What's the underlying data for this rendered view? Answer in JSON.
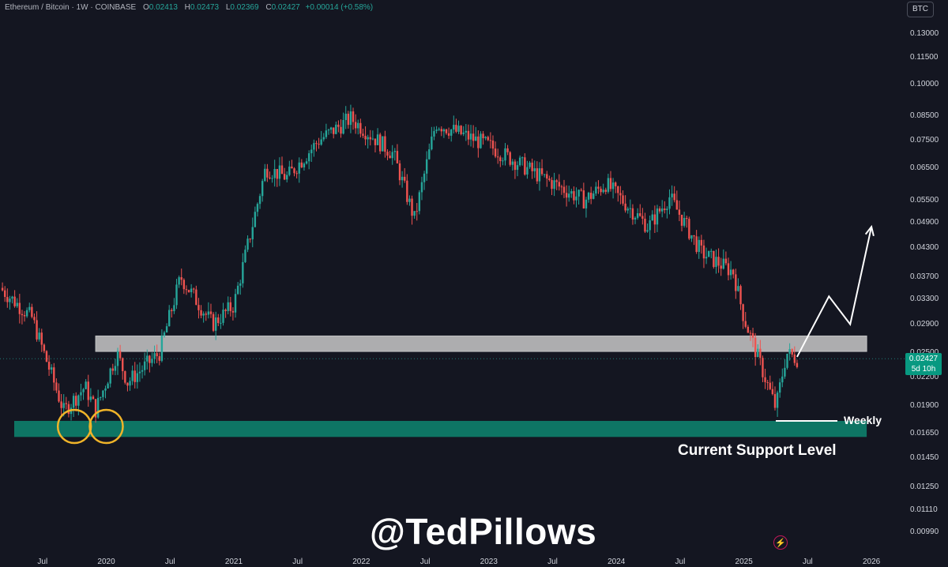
{
  "header": {
    "symbol": "Ethereum / Bitcoin · 1W · COINBASE",
    "open_label": "O",
    "open_value": "0.02413",
    "high_label": "H",
    "high_value": "0.02473",
    "low_label": "L",
    "low_value": "0.02369",
    "close_label": "C",
    "close_value": "0.02427",
    "change": "+0.00014 (+0.58%)"
  },
  "currency_button": "BTC",
  "price_tag": {
    "price": "0.02427",
    "countdown": "5d 10h"
  },
  "annotations": {
    "weekly": "Weekly",
    "support": "Current Support Level",
    "watermark": "@TedPillows"
  },
  "colors": {
    "background": "#141621",
    "up": "#26a69a",
    "down": "#ef5350",
    "support_zone": "#0e7a68",
    "resistance_zone": "#c8c8c8",
    "circle": "#f0b429"
  },
  "chart_data": {
    "type": "candlestick",
    "timeframe": "1W",
    "y_scale": "log",
    "y_ticks": [
      "0.13000",
      "0.11500",
      "0.10000",
      "0.08500",
      "0.07500",
      "0.06500",
      "0.05500",
      "0.04900",
      "0.04300",
      "0.03700",
      "0.03300",
      "0.02900",
      "0.02500",
      "0.02200",
      "0.01900",
      "0.01650",
      "0.01450",
      "0.01250",
      "0.01110",
      "0.00990"
    ],
    "x_ticks": [
      "Jul",
      "2020",
      "Jul",
      "2021",
      "Jul",
      "2022",
      "Jul",
      "2023",
      "Jul",
      "2024",
      "Jul",
      "2025",
      "Jul",
      "2026"
    ],
    "x_range": [
      "2019-03",
      "2026-03"
    ],
    "price_path": [
      [
        "2019-03",
        0.035
      ],
      [
        "2019-06",
        0.03
      ],
      [
        "2019-09",
        0.0185
      ],
      [
        "2019-11",
        0.021
      ],
      [
        "2019-12",
        0.0186
      ],
      [
        "2020-02",
        0.025
      ],
      [
        "2020-03",
        0.0215
      ],
      [
        "2020-06",
        0.025
      ],
      [
        "2020-08",
        0.037
      ],
      [
        "2020-11",
        0.029
      ],
      [
        "2021-01",
        0.032
      ],
      [
        "2021-04",
        0.065
      ],
      [
        "2021-06",
        0.062
      ],
      [
        "2021-09",
        0.075
      ],
      [
        "2021-12",
        0.084
      ],
      [
        "2022-04",
        0.07
      ],
      [
        "2022-06",
        0.05
      ],
      [
        "2022-08",
        0.082
      ],
      [
        "2023-01",
        0.073
      ],
      [
        "2023-06",
        0.062
      ],
      [
        "2023-10",
        0.055
      ],
      [
        "2023-12",
        0.06
      ],
      [
        "2024-04",
        0.048
      ],
      [
        "2024-06",
        0.056
      ],
      [
        "2024-09",
        0.042
      ],
      [
        "2024-12",
        0.038
      ],
      [
        "2025-01",
        0.03
      ],
      [
        "2025-04",
        0.0188
      ],
      [
        "2025-05",
        0.025
      ],
      [
        "2025-06",
        0.02427
      ]
    ],
    "zones": [
      {
        "kind": "resistance",
        "from": "2019-12",
        "to": "2026-01",
        "low": 0.0252,
        "high": 0.0273
      },
      {
        "kind": "support",
        "from": "2019-03",
        "to": "2026-01",
        "low": 0.0162,
        "high": 0.0176
      }
    ],
    "highlight_circles": [
      "2019-10",
      "2020-01"
    ],
    "weekly_line": {
      "from": "2025-04",
      "to": "2026-01",
      "price": 0.018
    },
    "projection": [
      [
        "2025-06",
        0.0245
      ],
      [
        "2025-09",
        0.0335
      ],
      [
        "2025-11",
        0.029
      ],
      [
        "2026-01",
        0.048
      ]
    ],
    "last_price": 0.02427
  }
}
